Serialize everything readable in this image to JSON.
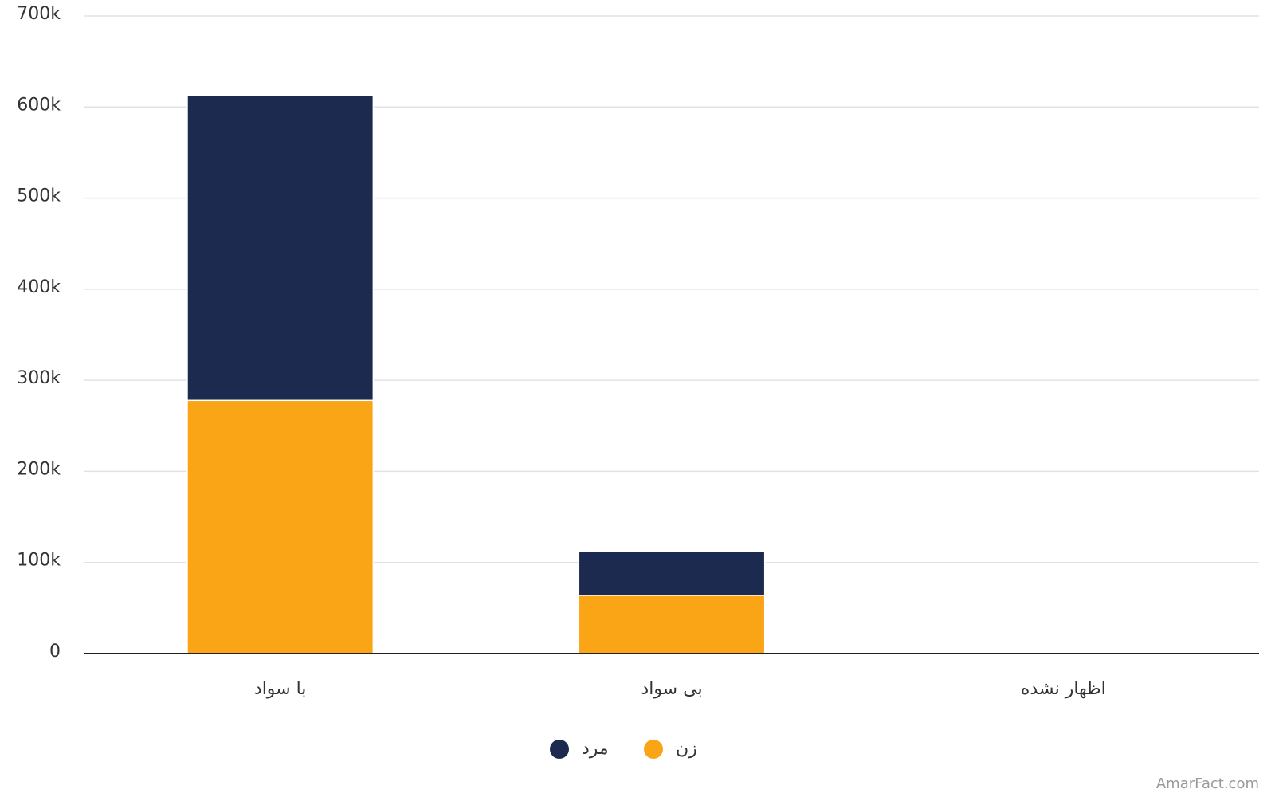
{
  "chart_data": {
    "type": "stacked-bar",
    "categories": [
      "با سواد",
      "بی سواد",
      "اظهار نشده"
    ],
    "series": [
      {
        "name": "زن",
        "color": "#faa515",
        "values": [
          278000,
          64000,
          0
        ]
      },
      {
        "name": "مرد",
        "color": "#1b2a4e",
        "values": [
          335000,
          48000,
          0
        ]
      }
    ],
    "ylim": [
      0,
      700000
    ],
    "yticks": [
      0,
      {
        "value": 100000,
        "label": "100k"
      },
      {
        "value": 200000,
        "label": "200k"
      },
      {
        "value": 300000,
        "label": "300k"
      },
      {
        "value": 400000,
        "label": "400k"
      },
      {
        "value": 500000,
        "label": "500k"
      },
      {
        "value": 600000,
        "label": "600k"
      },
      {
        "value": 700000,
        "label": "700k"
      }
    ],
    "grid": true,
    "legend": "bottom",
    "watermark": "AmarFact.com"
  }
}
